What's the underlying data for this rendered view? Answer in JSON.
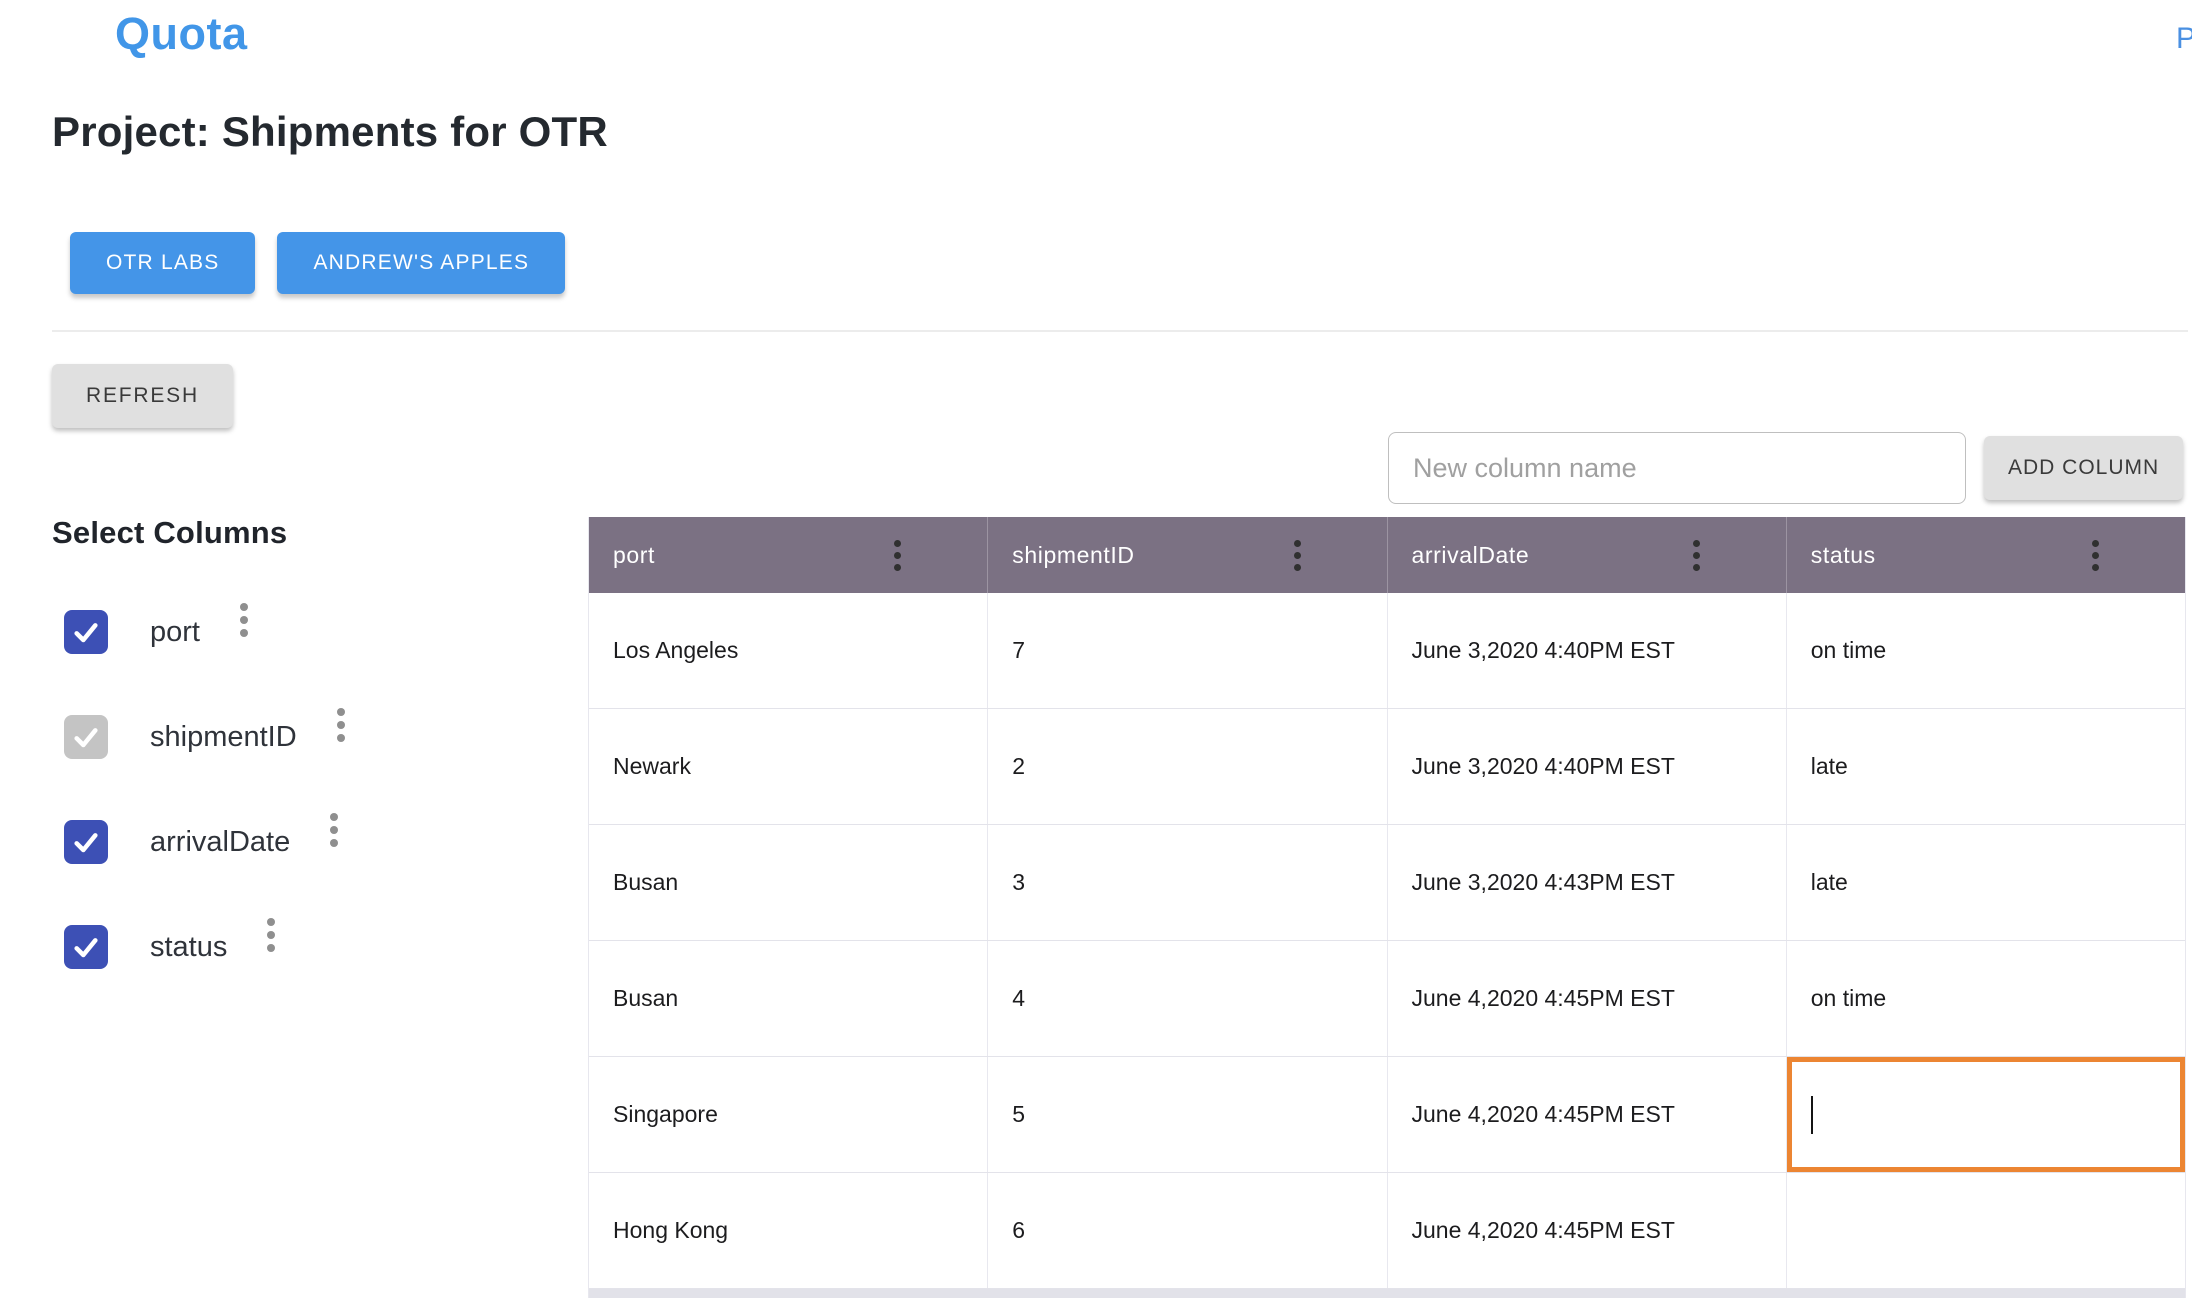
{
  "app": {
    "title": "Quota",
    "top_right_link": "P"
  },
  "project": {
    "heading": "Project: Shipments for OTR",
    "tags": [
      "OTR LABS",
      "ANDREW'S APPLES"
    ]
  },
  "toolbar": {
    "refresh_label": "REFRESH",
    "new_column_placeholder": "New column name",
    "new_column_value": "",
    "add_column_label": "ADD COLUMN"
  },
  "column_selector": {
    "heading": "Select Columns",
    "items": [
      {
        "label": "port",
        "checked": true,
        "disabled": false
      },
      {
        "label": "shipmentID",
        "checked": true,
        "disabled": true
      },
      {
        "label": "arrivalDate",
        "checked": true,
        "disabled": false
      },
      {
        "label": "status",
        "checked": true,
        "disabled": false
      }
    ]
  },
  "table": {
    "columns": [
      "port",
      "shipmentID",
      "arrivalDate",
      "status"
    ],
    "rows": [
      [
        "Los Angeles",
        "7",
        "June 3,2020 4:40PM EST",
        "on time"
      ],
      [
        "Newark",
        "2",
        "June 3,2020 4:40PM EST",
        "late"
      ],
      [
        "Busan",
        "3",
        "June 3,2020 4:43PM EST",
        "late"
      ],
      [
        "Busan",
        "4",
        "June 4,2020 4:45PM EST",
        "on time"
      ],
      [
        "Singapore",
        "5",
        "June 4,2020 4:45PM EST",
        ""
      ],
      [
        "Hong Kong",
        "6",
        "June 4,2020 4:45PM EST",
        ""
      ]
    ],
    "editing_cell": {
      "row": 4,
      "col": 3
    }
  },
  "colors": {
    "brand_blue": "#4196e8",
    "button_blue": "#4495e8",
    "checkbox_indigo": "#3d50b5",
    "checkbox_disabled_gray": "#c4c4c4",
    "table_header_purple": "#7b7183",
    "editing_cell_orange": "#ec8532",
    "gray_button": "#e0e0e0"
  }
}
